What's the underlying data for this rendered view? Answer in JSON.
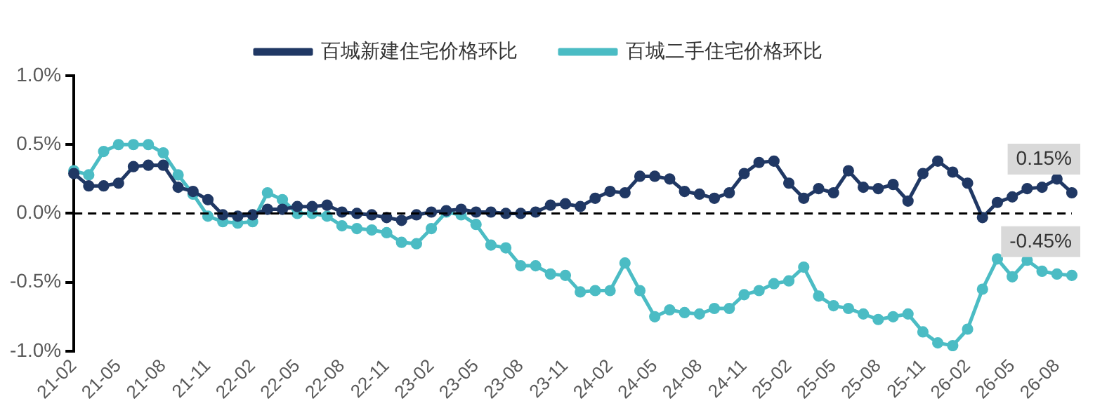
{
  "chart_data": {
    "type": "line",
    "categories": [
      "21-02",
      null,
      null,
      "21-05",
      null,
      null,
      "21-08",
      null,
      null,
      "21-11",
      null,
      null,
      "22-02",
      null,
      null,
      "22-05",
      null,
      null,
      "22-08",
      null,
      null,
      "22-11",
      null,
      null,
      "23-02",
      null,
      null,
      "23-05",
      null,
      null,
      "23-08",
      null,
      null,
      "23-11",
      null,
      null,
      "24-02",
      null,
      null,
      "24-05",
      null,
      null,
      "24-08",
      null,
      null,
      "24-11",
      null,
      null,
      "25-02",
      null,
      null,
      "25-05",
      null,
      null,
      "25-08",
      null,
      null,
      "25-11",
      null,
      null,
      "26-02",
      null,
      null,
      "26-05",
      null,
      null,
      "26-08",
      null
    ],
    "series": [
      {
        "name": "百城新建住宅价格环比",
        "color": "#203864",
        "values": [
          0.29,
          0.2,
          0.2,
          0.22,
          0.34,
          0.35,
          0.35,
          0.19,
          0.16,
          0.1,
          -0.01,
          -0.02,
          -0.01,
          0.03,
          0.03,
          0.05,
          0.05,
          0.06,
          0.01,
          0.0,
          -0.01,
          -0.03,
          -0.05,
          -0.01,
          0.01,
          0.02,
          0.03,
          0.01,
          0.01,
          0.0,
          0.0,
          0.01,
          0.06,
          0.07,
          0.05,
          0.11,
          0.16,
          0.15,
          0.27,
          0.27,
          0.25,
          0.16,
          0.14,
          0.11,
          0.15,
          0.29,
          0.37,
          0.38,
          0.22,
          0.11,
          0.18,
          0.15,
          0.31,
          0.19,
          0.18,
          0.21,
          0.09,
          0.29,
          0.38,
          0.3,
          0.22,
          -0.03,
          0.08,
          0.12,
          0.18,
          0.19,
          0.25,
          0.15
        ],
        "value_labels": [
          null,
          null,
          null,
          null,
          null,
          null,
          null,
          null,
          null,
          null,
          null,
          null,
          null,
          null,
          null,
          null,
          null,
          null,
          null,
          null,
          null,
          null,
          null,
          null,
          null,
          null,
          null,
          null,
          null,
          null,
          null,
          null,
          null,
          null,
          null,
          null,
          null,
          null,
          null,
          null,
          null,
          null,
          null,
          null,
          null,
          null,
          null,
          null,
          null,
          null,
          null,
          null,
          null,
          null,
          null,
          null,
          null,
          null,
          null,
          null,
          null,
          null,
          null,
          null,
          null,
          null,
          null,
          "0.15%"
        ]
      },
      {
        "name": "百城二手住宅价格环比",
        "color": "#4bbcc4",
        "values": [
          0.31,
          0.28,
          0.45,
          0.5,
          0.5,
          0.5,
          0.44,
          0.28,
          0.14,
          -0.02,
          -0.06,
          -0.07,
          -0.06,
          0.15,
          0.1,
          0.0,
          0.0,
          -0.02,
          -0.09,
          -0.11,
          -0.12,
          -0.14,
          -0.21,
          -0.22,
          -0.11,
          0.01,
          -0.01,
          -0.08,
          -0.23,
          -0.25,
          -0.38,
          -0.38,
          -0.44,
          -0.45,
          -0.57,
          -0.56,
          -0.56,
          -0.36,
          -0.56,
          -0.75,
          -0.7,
          -0.72,
          -0.73,
          -0.69,
          -0.69,
          -0.59,
          -0.56,
          -0.51,
          -0.49,
          -0.39,
          -0.6,
          -0.67,
          -0.69,
          -0.73,
          -0.77,
          -0.75,
          -0.73,
          -0.86,
          -0.94,
          -0.96,
          -0.84,
          -0.55,
          -0.33,
          -0.46,
          -0.34,
          -0.42,
          -0.44,
          -0.45
        ],
        "value_labels": [
          null,
          null,
          null,
          null,
          null,
          null,
          null,
          null,
          null,
          null,
          null,
          null,
          null,
          null,
          null,
          null,
          null,
          null,
          null,
          null,
          null,
          null,
          null,
          null,
          null,
          null,
          null,
          null,
          null,
          null,
          null,
          null,
          null,
          null,
          null,
          null,
          null,
          null,
          null,
          null,
          null,
          null,
          null,
          null,
          null,
          null,
          null,
          null,
          null,
          null,
          null,
          null,
          null,
          null,
          null,
          null,
          null,
          null,
          null,
          null,
          null,
          null,
          null,
          null,
          null,
          null,
          null,
          "-0.45%"
        ]
      }
    ],
    "ylim": [
      -1.0,
      1.0
    ],
    "yticks": [
      {
        "value": -1.0,
        "label": "-1.0%"
      },
      {
        "value": -0.5,
        "label": "-0.5%"
      },
      {
        "value": 0,
        "label": "0.0%"
      },
      {
        "value": 0.5,
        "label": "0.5%"
      },
      {
        "value": 1.0,
        "label": "1.0%"
      }
    ],
    "ref_lines": [
      {
        "axis": "y",
        "value": 0,
        "color": "#000000",
        "line_style": "dashed"
      }
    ],
    "legend": "top",
    "grid": false,
    "marker": "circle",
    "line_style": "solid"
  }
}
